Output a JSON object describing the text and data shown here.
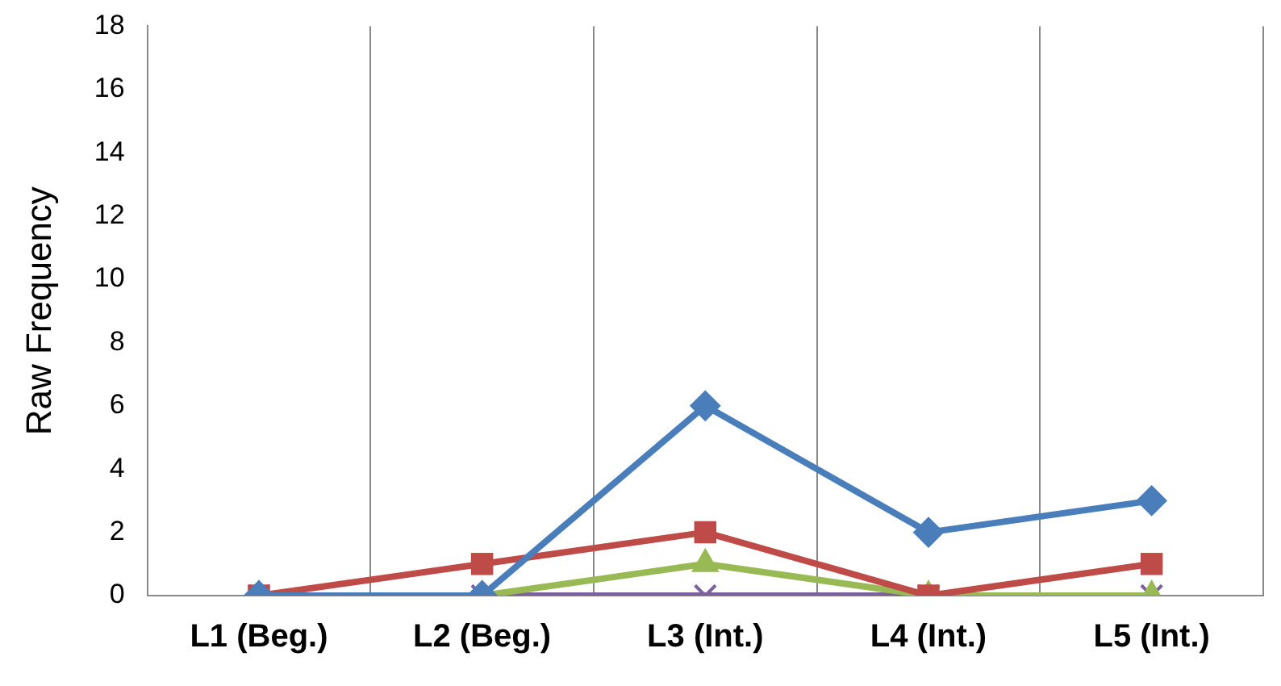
{
  "chart_data": {
    "type": "line",
    "ylabel": "Raw Frequency",
    "categories": [
      "L1 (Beg.)",
      "L2 (Beg.)",
      "L3 (Int.)",
      "L4 (Int.)",
      "L5 (Int.)"
    ],
    "series": [
      {
        "color": "#4a7ebb",
        "marker": "diamond",
        "values": [
          0,
          0,
          6,
          2,
          3
        ]
      },
      {
        "color": "#be4b48",
        "marker": "square",
        "values": [
          0,
          1,
          2,
          0,
          1
        ]
      },
      {
        "color": "#98b954",
        "marker": "triangle",
        "values": [
          0,
          0,
          1,
          0,
          0
        ]
      },
      {
        "color": "#7d60a0",
        "marker": "cross",
        "values": [
          0,
          0,
          0,
          0,
          0
        ]
      }
    ],
    "ylim": [
      0,
      18
    ],
    "yticks": [
      0,
      2,
      4,
      6,
      8,
      10,
      12,
      14,
      16,
      18
    ],
    "grid": "x",
    "legend": false,
    "line_style": "solid"
  }
}
